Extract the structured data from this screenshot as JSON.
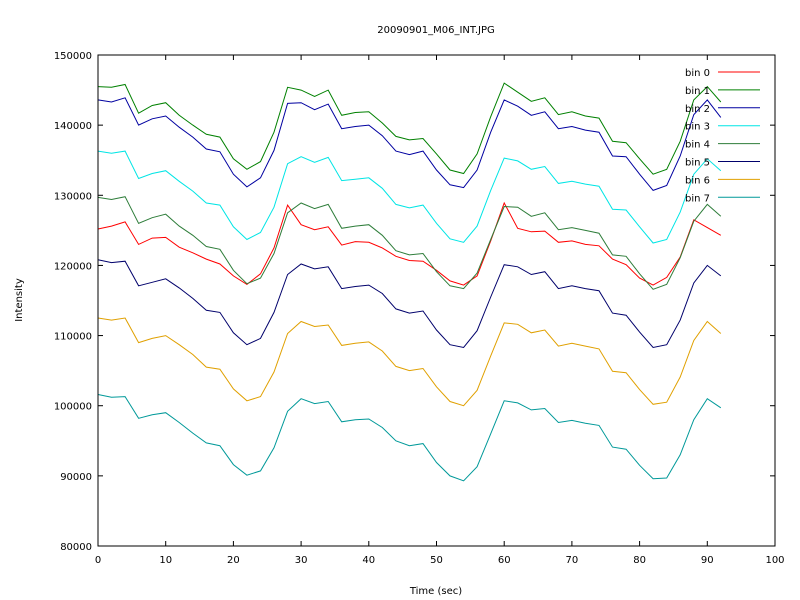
{
  "chart_data": {
    "type": "line",
    "title": "20090901_M06_INT.JPG",
    "xlabel": "Time (sec)",
    "ylabel": "Intensity",
    "xlim": [
      0,
      100
    ],
    "ylim": [
      80000,
      150000
    ],
    "xticks": [
      0,
      10,
      20,
      30,
      40,
      50,
      60,
      70,
      80,
      90,
      100
    ],
    "yticks": [
      80000,
      90000,
      100000,
      110000,
      120000,
      130000,
      140000,
      150000
    ],
    "grid": false,
    "legend_position": "top-right",
    "x": [
      0,
      2,
      4,
      6,
      8,
      10,
      12,
      14,
      16,
      18,
      20,
      22,
      24,
      26,
      28,
      30,
      32,
      34,
      36,
      38,
      40,
      42,
      44,
      46,
      48,
      50,
      52,
      54,
      56,
      58,
      60,
      62,
      64,
      66,
      68,
      70,
      72,
      74,
      76,
      78,
      80,
      82,
      84,
      86,
      88,
      90,
      92
    ],
    "series": [
      {
        "name": "bin 0",
        "color": "#ff0000",
        "values": [
          125200,
          125600,
          126200,
          123000,
          123900,
          124000,
          122600,
          121800,
          120900,
          120200,
          118500,
          117300,
          118800,
          122500,
          128600,
          125800,
          125100,
          125500,
          122900,
          123400,
          123300,
          122500,
          121300,
          120700,
          120600,
          119300,
          117800,
          117200,
          118500,
          123500,
          128900,
          125300,
          124800,
          124900,
          123300,
          123500,
          123000,
          122800,
          120900,
          120100,
          118200,
          117200,
          118300,
          121200,
          126500,
          125400,
          124300
        ]
      },
      {
        "name": "bin 1",
        "color": "#008000",
        "values": [
          145500,
          145400,
          145800,
          141700,
          142800,
          143200,
          141400,
          140000,
          138700,
          138300,
          135200,
          133700,
          134800,
          139000,
          145400,
          145000,
          144100,
          145000,
          141400,
          141800,
          141900,
          140300,
          138400,
          137900,
          138100,
          135900,
          133600,
          133100,
          135900,
          141200,
          146000,
          144700,
          143400,
          143900,
          141500,
          141900,
          141300,
          141000,
          137700,
          137500,
          135200,
          133000,
          133700,
          137700,
          143600,
          145500,
          143300
        ]
      },
      {
        "name": "bin 2",
        "color": "#0000a0",
        "values": [
          143600,
          143300,
          143900,
          140000,
          140900,
          141300,
          139700,
          138300,
          136600,
          136200,
          133000,
          131200,
          132500,
          136400,
          143100,
          143200,
          142200,
          143000,
          139500,
          139800,
          140000,
          138500,
          136300,
          135800,
          136300,
          133600,
          131500,
          131100,
          133600,
          139000,
          143600,
          142700,
          141400,
          141900,
          139500,
          139800,
          139300,
          139000,
          135600,
          135500,
          133000,
          130700,
          131400,
          135600,
          141500,
          143600,
          141100
        ]
      },
      {
        "name": "bin 3",
        "color": "#00e5e5",
        "values": [
          136300,
          136000,
          136300,
          132400,
          133100,
          133500,
          132000,
          130600,
          128900,
          128600,
          125500,
          123700,
          124700,
          128300,
          134500,
          135500,
          134700,
          135400,
          132100,
          132300,
          132500,
          131000,
          128700,
          128200,
          128600,
          126000,
          123800,
          123300,
          125600,
          130700,
          135300,
          134900,
          133700,
          134100,
          131700,
          132000,
          131600,
          131300,
          128000,
          127900,
          125500,
          123200,
          123700,
          127600,
          133000,
          135200,
          133500
        ]
      },
      {
        "name": "bin 4",
        "color": "#2e7d3a",
        "values": [
          129700,
          129400,
          129800,
          126000,
          126800,
          127300,
          125600,
          124300,
          122700,
          122300,
          119300,
          117400,
          118200,
          121700,
          127500,
          128900,
          128100,
          128700,
          125300,
          125600,
          125800,
          124300,
          122100,
          121500,
          121700,
          119100,
          117100,
          116700,
          118900,
          123700,
          128400,
          128300,
          127000,
          127500,
          125100,
          125400,
          125000,
          124600,
          121500,
          121300,
          118800,
          116600,
          117300,
          121100,
          126300,
          128700,
          127000
        ]
      },
      {
        "name": "bin 5",
        "color": "#00006b",
        "values": [
          120800,
          120400,
          120600,
          117100,
          117600,
          118100,
          116800,
          115300,
          113600,
          113300,
          110400,
          108700,
          109600,
          113300,
          118700,
          120200,
          119500,
          119800,
          116700,
          117000,
          117200,
          116000,
          113800,
          113200,
          113500,
          110800,
          108700,
          108300,
          110700,
          115500,
          120100,
          119800,
          118700,
          119100,
          116700,
          117100,
          116700,
          116400,
          113200,
          112900,
          110500,
          108300,
          108700,
          112200,
          117500,
          120000,
          118500
        ]
      },
      {
        "name": "bin 6",
        "color": "#e0a000",
        "values": [
          112500,
          112200,
          112500,
          109000,
          109600,
          110000,
          108700,
          107300,
          105500,
          105200,
          102400,
          100700,
          101300,
          104800,
          110300,
          112000,
          111300,
          111500,
          108600,
          108900,
          109100,
          107800,
          105600,
          105000,
          105300,
          102700,
          100600,
          100000,
          102200,
          107100,
          111800,
          111600,
          110400,
          110800,
          108500,
          108900,
          108500,
          108100,
          104900,
          104700,
          102300,
          100200,
          100500,
          104100,
          109300,
          112000,
          110300
        ]
      },
      {
        "name": "bin 7",
        "color": "#009999",
        "values": [
          101600,
          101200,
          101300,
          98200,
          98700,
          99000,
          97600,
          96100,
          94700,
          94300,
          91600,
          90100,
          90700,
          94000,
          99200,
          101000,
          100300,
          100600,
          97700,
          98000,
          98100,
          96900,
          95000,
          94300,
          94600,
          91900,
          90000,
          89300,
          91300,
          96000,
          100700,
          100400,
          99400,
          99600,
          97600,
          97900,
          97500,
          97200,
          94100,
          93800,
          91500,
          89600,
          89700,
          93000,
          98000,
          101000,
          99700
        ]
      }
    ]
  }
}
